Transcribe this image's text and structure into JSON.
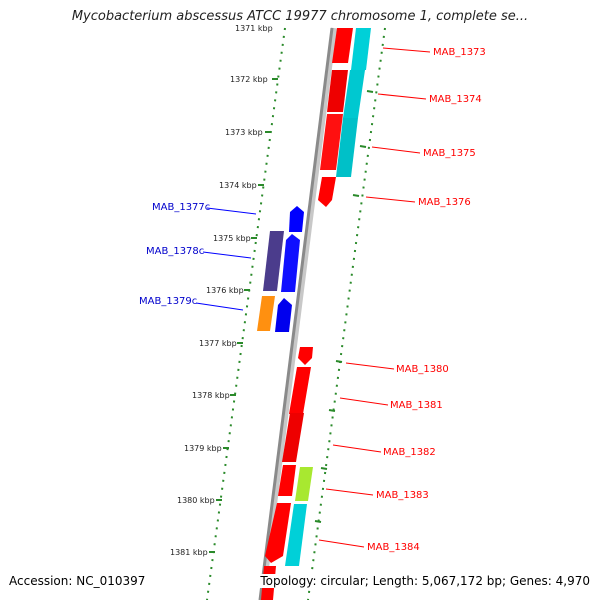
{
  "title": "Mycobacterium abscessus ATCC 19977 chromosome 1, complete se...",
  "footer": {
    "accession": "Accession: NC_010397",
    "summary": "Topology: circular; Length: 5,067,172 bp; Genes: 4,970"
  },
  "scale_labels": [
    "1371 kbp",
    "1372 kbp",
    "1373 kbp",
    "1374 kbp",
    "1375 kbp",
    "1376 kbp",
    "1377 kbp",
    "1378 kbp",
    "1379 kbp",
    "1380 kbp",
    "1381 kbp"
  ],
  "forward_genes": [
    {
      "label": "MAB_1373",
      "color": "#ff0000"
    },
    {
      "label": "MAB_1374",
      "color": "#ff0000"
    },
    {
      "label": "MAB_1375",
      "color": "#ff0000"
    },
    {
      "label": "MAB_1376",
      "color": "#ff0000"
    },
    {
      "label": "MAB_1380",
      "color": "#ff0000"
    },
    {
      "label": "MAB_1381",
      "color": "#ff0000"
    },
    {
      "label": "MAB_1382",
      "color": "#ff0000"
    },
    {
      "label": "MAB_1383",
      "color": "#ff0000"
    },
    {
      "label": "MAB_1384",
      "color": "#ff0000"
    }
  ],
  "reverse_genes": [
    {
      "label": "MAB_1377c",
      "color": "#0000ff"
    },
    {
      "label": "MAB_1378c",
      "color": "#0000ff"
    },
    {
      "label": "MAB_1379c",
      "color": "#0000ff"
    }
  ],
  "colors": {
    "forward": "#ff0000",
    "reverse": "#0000ff",
    "cyan_feature": "#00d0d8",
    "purple_feature": "#4b3c8c",
    "orange_feature": "#ff9010",
    "lime_feature": "#a8e830",
    "backbone": "#8a8a8a",
    "ruler": "#2a8a2a"
  }
}
